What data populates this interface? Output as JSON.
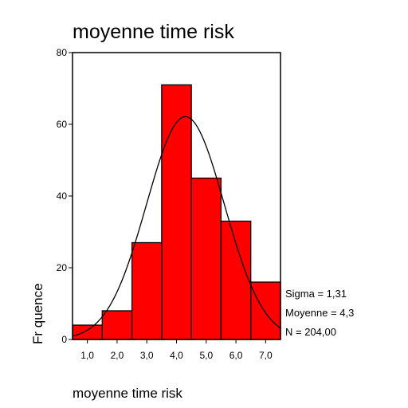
{
  "chart_data": {
    "type": "bar",
    "title": "moyenne time risk",
    "xlabel": "moyenne time risk",
    "ylabel": "Fr quence",
    "bin_centers": [
      1.0,
      2.0,
      3.0,
      4.0,
      5.0,
      6.0,
      7.0
    ],
    "x_tick_labels": [
      "1,0",
      "2,0",
      "3,0",
      "4,0",
      "5,0",
      "6,0",
      "7,0"
    ],
    "values": [
      4,
      8,
      27,
      71,
      45,
      33,
      16
    ],
    "xlim": [
      0.5,
      7.5
    ],
    "ylim": [
      0,
      80
    ],
    "y_ticks": [
      0,
      20,
      40,
      60,
      80
    ],
    "grid": false,
    "bar_color": "#ff0000",
    "normal_curve": {
      "mean": 4.3,
      "sigma": 1.31,
      "n": 204
    },
    "stats": [
      "Sigma = 1,31",
      "Moyenne = 4,3",
      "N = 204,00"
    ]
  }
}
